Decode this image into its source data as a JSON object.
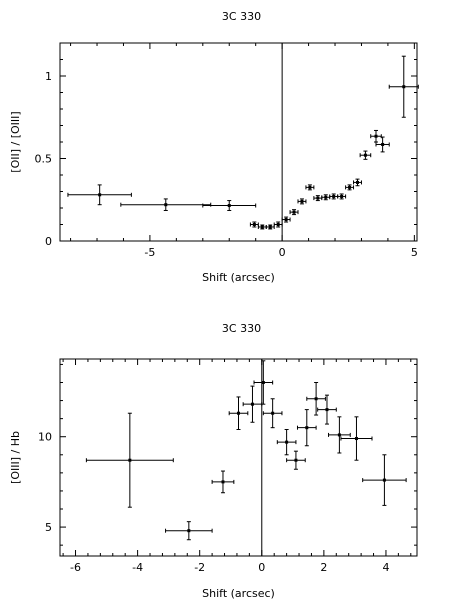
{
  "chart_data": [
    {
      "type": "scatter",
      "title": "3C 330",
      "xlabel": "Shift (arcsec)",
      "ylabel": "[OII] / [OIII]",
      "xlim": [
        -8.4,
        5.1
      ],
      "ylim": [
        0,
        1.2
      ],
      "xticks": [
        -5,
        0,
        5
      ],
      "yticks": [
        0,
        0.5,
        1
      ],
      "vline_x": 0,
      "points": [
        {
          "x": -6.9,
          "y": 0.28,
          "xerr": 1.2,
          "yerr": 0.06
        },
        {
          "x": -4.4,
          "y": 0.22,
          "xerr": 1.7,
          "yerr": 0.035
        },
        {
          "x": -2.0,
          "y": 0.215,
          "xerr": 1.0,
          "yerr": 0.03
        },
        {
          "x": -1.05,
          "y": 0.1,
          "xerr": 0.15,
          "yerr": 0.015
        },
        {
          "x": -0.75,
          "y": 0.085,
          "xerr": 0.15,
          "yerr": 0.012
        },
        {
          "x": -0.45,
          "y": 0.085,
          "xerr": 0.15,
          "yerr": 0.012
        },
        {
          "x": -0.15,
          "y": 0.1,
          "xerr": 0.15,
          "yerr": 0.015
        },
        {
          "x": 0.15,
          "y": 0.13,
          "xerr": 0.15,
          "yerr": 0.015
        },
        {
          "x": 0.45,
          "y": 0.175,
          "xerr": 0.15,
          "yerr": 0.015
        },
        {
          "x": 0.75,
          "y": 0.24,
          "xerr": 0.15,
          "yerr": 0.015
        },
        {
          "x": 1.05,
          "y": 0.325,
          "xerr": 0.15,
          "yerr": 0.015
        },
        {
          "x": 1.35,
          "y": 0.26,
          "xerr": 0.15,
          "yerr": 0.015
        },
        {
          "x": 1.65,
          "y": 0.265,
          "xerr": 0.15,
          "yerr": 0.015
        },
        {
          "x": 1.95,
          "y": 0.27,
          "xerr": 0.15,
          "yerr": 0.015
        },
        {
          "x": 2.25,
          "y": 0.27,
          "xerr": 0.15,
          "yerr": 0.015
        },
        {
          "x": 2.55,
          "y": 0.325,
          "xerr": 0.15,
          "yerr": 0.015
        },
        {
          "x": 2.85,
          "y": 0.355,
          "xerr": 0.15,
          "yerr": 0.02
        },
        {
          "x": 3.15,
          "y": 0.52,
          "xerr": 0.2,
          "yerr": 0.025
        },
        {
          "x": 3.55,
          "y": 0.635,
          "xerr": 0.2,
          "yerr": 0.035
        },
        {
          "x": 3.8,
          "y": 0.585,
          "xerr": 0.25,
          "yerr": 0.045
        },
        {
          "x": 4.6,
          "y": 0.935,
          "xerr": 0.55,
          "yerr": 0.185
        }
      ]
    },
    {
      "type": "scatter",
      "title": "3C 330",
      "xlabel": "Shift (arcsec)",
      "ylabel": "[OIII] / Hb",
      "xlim": [
        -6.5,
        5.0
      ],
      "ylim": [
        3.4,
        14.3
      ],
      "xticks": [
        -6,
        -4,
        -2,
        0,
        2,
        4
      ],
      "yticks": [
        5,
        10
      ],
      "vline_x": 0,
      "points": [
        {
          "x": -4.25,
          "y": 8.7,
          "xerr": 1.4,
          "yerr": 2.6
        },
        {
          "x": -2.35,
          "y": 4.8,
          "xerr": 0.75,
          "yerr": 0.5
        },
        {
          "x": -1.25,
          "y": 7.5,
          "xerr": 0.35,
          "yerr": 0.6
        },
        {
          "x": -0.75,
          "y": 11.3,
          "xerr": 0.3,
          "yerr": 0.9
        },
        {
          "x": -0.3,
          "y": 11.8,
          "xerr": 0.3,
          "yerr": 1.0
        },
        {
          "x": 0.05,
          "y": 13.0,
          "xerr": 0.3,
          "yerr": 1.2
        },
        {
          "x": 0.35,
          "y": 11.3,
          "xerr": 0.3,
          "yerr": 0.8
        },
        {
          "x": 0.8,
          "y": 9.7,
          "xerr": 0.3,
          "yerr": 0.7
        },
        {
          "x": 1.1,
          "y": 8.7,
          "xerr": 0.3,
          "yerr": 0.5
        },
        {
          "x": 1.45,
          "y": 10.5,
          "xerr": 0.3,
          "yerr": 1.0
        },
        {
          "x": 1.75,
          "y": 12.1,
          "xerr": 0.3,
          "yerr": 0.9
        },
        {
          "x": 2.1,
          "y": 11.5,
          "xerr": 0.3,
          "yerr": 0.8
        },
        {
          "x": 2.5,
          "y": 10.1,
          "xerr": 0.35,
          "yerr": 1.0
        },
        {
          "x": 3.05,
          "y": 9.9,
          "xerr": 0.5,
          "yerr": 1.2
        },
        {
          "x": 3.95,
          "y": 7.6,
          "xerr": 0.7,
          "yerr": 1.4
        }
      ]
    }
  ]
}
